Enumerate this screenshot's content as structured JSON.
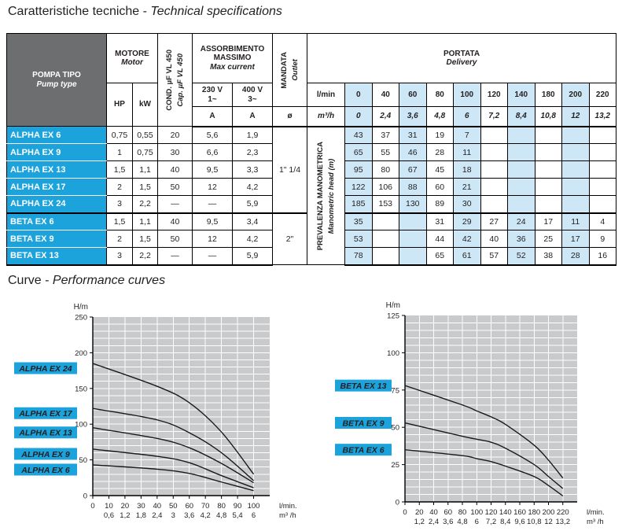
{
  "page": {
    "title_left": "Caratteristiche tecniche - ",
    "title_right": "Technical specifications",
    "curves_title_left": "Curve - ",
    "curves_title_right": "Performance curves"
  },
  "colors": {
    "cyan": "#1ca3dc",
    "light_blue": "#cee7f6",
    "header_gray": "#6d6e70",
    "chart_gray": "#c9cacb",
    "grid_white": "#ffffff",
    "row_divider": "#5bc2ec",
    "curve_black": "#1a1a1a"
  },
  "table": {
    "header": {
      "pump_type_line1": "POMPA TIPO",
      "pump_type_line2": "Pump type",
      "motor_line1": "MOTORE",
      "motor_line2": "Motor",
      "hp": "HP",
      "kw": "kW",
      "cond_line1": "COND. µF VL 450",
      "cond_line2": "Cap. µF VL 450",
      "absorb_line1": "ASSORBIMENTO",
      "absorb_line2": "MASSIMO",
      "absorb_line3": "Max current",
      "v230_line1": "230 V",
      "v230_line2": "1~",
      "v400_line1": "400 V",
      "v400_line2": "3~",
      "amp1": "A",
      "amp2": "A",
      "mandata_line1": "MANDATA",
      "mandata_line2": "Outlet",
      "diameter": "ø",
      "portata_line1": "PORTATA",
      "portata_line2": "Delivery",
      "lmin": "l/min",
      "m3h": "m³/h",
      "flow_lmin": [
        "0",
        "40",
        "60",
        "80",
        "100",
        "120",
        "140",
        "180",
        "200",
        "220"
      ],
      "flow_m3h": [
        "0",
        "2,4",
        "3,6",
        "4,8",
        "6",
        "7,2",
        "8,4",
        "10,8",
        "12",
        "13,2"
      ]
    },
    "prevalenza_line1": "PREVALENZA MANOMETRICA",
    "prevalenza_line2": "Manometric head (m)",
    "outlet_groups": [
      {
        "label": "1\" 1/4",
        "rows": 5
      },
      {
        "label": "2\"",
        "rows": 3
      }
    ],
    "rows": [
      {
        "name": "ALPHA EX 6",
        "hp": "0,75",
        "kw": "0,55",
        "cond": "20",
        "a230": "5,6",
        "a400": "1,9",
        "head": [
          "43",
          "37",
          "31",
          "19",
          "7",
          "",
          "",
          "",
          "",
          ""
        ]
      },
      {
        "name": "ALPHA EX 9",
        "hp": "1",
        "kw": "0,75",
        "cond": "30",
        "a230": "6,6",
        "a400": "2,3",
        "head": [
          "65",
          "55",
          "46",
          "28",
          "11",
          "",
          "",
          "",
          "",
          ""
        ]
      },
      {
        "name": "ALPHA EX 13",
        "hp": "1,5",
        "kw": "1,1",
        "cond": "40",
        "a230": "9,5",
        "a400": "3,3",
        "head": [
          "95",
          "80",
          "67",
          "45",
          "18",
          "",
          "",
          "",
          "",
          ""
        ]
      },
      {
        "name": "ALPHA EX 17",
        "hp": "2",
        "kw": "1,5",
        "cond": "50",
        "a230": "12",
        "a400": "4,2",
        "head": [
          "122",
          "106",
          "88",
          "60",
          "21",
          "",
          "",
          "",
          "",
          ""
        ]
      },
      {
        "name": "ALPHA EX 24",
        "hp": "3",
        "kw": "2,2",
        "cond": "—",
        "a230": "—",
        "a400": "5,9",
        "head": [
          "185",
          "153",
          "130",
          "89",
          "30",
          "",
          "",
          "",
          "",
          ""
        ]
      },
      {
        "name": "BETA EX 6",
        "hp": "1,5",
        "kw": "1,1",
        "cond": "40",
        "a230": "9,5",
        "a400": "3,4",
        "head": [
          "35",
          "",
          "",
          "31",
          "29",
          "27",
          "24",
          "17",
          "11",
          "4"
        ]
      },
      {
        "name": "BETA EX 9",
        "hp": "2",
        "kw": "1,5",
        "cond": "50",
        "a230": "12",
        "a400": "4,2",
        "head": [
          "53",
          "",
          "",
          "44",
          "42",
          "40",
          "36",
          "25",
          "17",
          "9"
        ]
      },
      {
        "name": "BETA EX 13",
        "hp": "3",
        "kw": "2,2",
        "cond": "—",
        "a230": "—",
        "a400": "5,9",
        "head": [
          "78",
          "",
          "",
          "65",
          "61",
          "57",
          "52",
          "38",
          "28",
          "16"
        ]
      }
    ]
  },
  "chart_data": [
    {
      "type": "line",
      "ylabel": "H/m",
      "x_unit_line1": "l/min.",
      "x_unit_line2": "m³ /h",
      "xlim": [
        0,
        110
      ],
      "ylim": [
        0,
        250
      ],
      "y_ticks": [
        0,
        50,
        100,
        150,
        200,
        250
      ],
      "x_ticks": [
        0,
        10,
        20,
        30,
        40,
        50,
        60,
        70,
        80,
        90,
        100
      ],
      "x_tick_labels": [
        "0",
        "10",
        "20",
        "30",
        "40",
        "50",
        "60",
        "70",
        "80",
        "90",
        "100"
      ],
      "x_tick_labels_m3h": [
        "",
        "0,6",
        "1,2",
        "1,8",
        "2,4",
        "3",
        "3,6",
        "4,2",
        "4,8",
        "5,4",
        "6"
      ],
      "minor_grid_x": 10,
      "minor_grid_y": 10,
      "grid": true,
      "legend_position": "left-of-curve-start",
      "series": [
        {
          "name": "ALPHA EX 24",
          "x": [
            0,
            40,
            60,
            80,
            100
          ],
          "y": [
            185,
            153,
            130,
            89,
            30
          ]
        },
        {
          "name": "ALPHA EX 17",
          "x": [
            0,
            40,
            60,
            80,
            100
          ],
          "y": [
            122,
            106,
            88,
            60,
            21
          ]
        },
        {
          "name": "ALPHA EX 13",
          "x": [
            0,
            40,
            60,
            80,
            100
          ],
          "y": [
            95,
            80,
            67,
            45,
            18
          ]
        },
        {
          "name": "ALPHA EX 9",
          "x": [
            0,
            40,
            60,
            80,
            100
          ],
          "y": [
            65,
            55,
            46,
            28,
            11
          ]
        },
        {
          "name": "ALPHA EX 6",
          "x": [
            0,
            40,
            60,
            80,
            100
          ],
          "y": [
            43,
            37,
            31,
            19,
            7
          ]
        }
      ]
    },
    {
      "type": "line",
      "ylabel": "H/m",
      "x_unit_line1": "l/min.",
      "x_unit_line2": "m³ /h",
      "xlim": [
        0,
        240
      ],
      "ylim": [
        0,
        125
      ],
      "y_ticks": [
        0,
        25,
        50,
        75,
        100,
        125
      ],
      "x_ticks": [
        0,
        20,
        40,
        60,
        80,
        100,
        120,
        140,
        160,
        180,
        200,
        220
      ],
      "x_tick_labels": [
        "0",
        "20",
        "40",
        "60",
        "80",
        "100",
        "120",
        "140",
        "160",
        "180",
        "200",
        "220"
      ],
      "x_tick_labels_m3h": [
        "",
        "1,2",
        "2,4",
        "3,6",
        "4,8",
        "6",
        "7,2",
        "8,4",
        "9,6",
        "10,8",
        "12",
        "13,2"
      ],
      "minor_grid_x": 20,
      "minor_grid_y": 5,
      "grid": true,
      "legend_position": "left-of-curve-start",
      "series": [
        {
          "name": "BETA EX 13",
          "x": [
            0,
            80,
            100,
            120,
            140,
            180,
            200,
            220
          ],
          "y": [
            78,
            65,
            61,
            57,
            52,
            38,
            28,
            16
          ]
        },
        {
          "name": "BETA EX 9",
          "x": [
            0,
            80,
            100,
            120,
            140,
            180,
            200,
            220
          ],
          "y": [
            53,
            44,
            42,
            40,
            36,
            25,
            17,
            9
          ]
        },
        {
          "name": "BETA EX 6",
          "x": [
            0,
            80,
            100,
            120,
            140,
            180,
            200,
            220
          ],
          "y": [
            35,
            31,
            29,
            27,
            24,
            17,
            11,
            4
          ]
        }
      ]
    }
  ]
}
